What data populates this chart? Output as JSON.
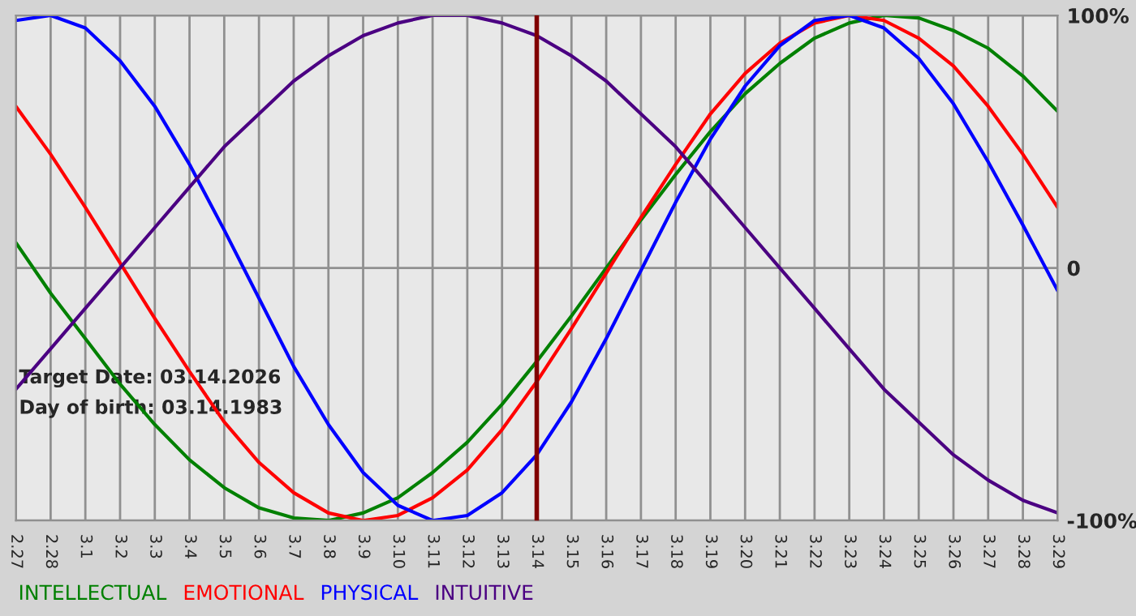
{
  "chart_data": {
    "type": "line",
    "categories": [
      "2.27",
      "2.28",
      "3.1",
      "3.2",
      "3.3",
      "3.4",
      "3.5",
      "3.6",
      "3.7",
      "3.8",
      "3.9",
      "3.10",
      "3.11",
      "3.12",
      "3.13",
      "3.14",
      "3.15",
      "3.16",
      "3.17",
      "3.18",
      "3.19",
      "3.20",
      "3.21",
      "3.22",
      "3.23",
      "3.24",
      "3.25",
      "3.26",
      "3.27",
      "3.28",
      "3.29"
    ],
    "series": [
      {
        "name": "INTELLECTUAL",
        "color": "#008000",
        "values": [
          10,
          -10,
          -28,
          -46,
          -62,
          -76,
          -87,
          -95,
          -99,
          -100,
          -97,
          -91,
          -81,
          -69,
          -54,
          -37,
          -19,
          0,
          19,
          37,
          54,
          69,
          81,
          91,
          97,
          100,
          99,
          94,
          87,
          76,
          62
        ]
      },
      {
        "name": "EMOTIONAL",
        "color": "#ff0000",
        "values": [
          64,
          45,
          24,
          2,
          -20,
          -41,
          -61,
          -77,
          -89,
          -97,
          -100,
          -98,
          -91,
          -80,
          -64,
          -45,
          -24,
          -2,
          20,
          41,
          61,
          77,
          89,
          97,
          100,
          98,
          91,
          80,
          64,
          45,
          24
        ]
      },
      {
        "name": "PHYSICAL",
        "color": "#0000ff",
        "values": [
          98,
          100,
          95,
          82,
          64,
          41,
          15,
          -12,
          -39,
          -62,
          -81,
          -94,
          -100,
          -98,
          -89,
          -74,
          -53,
          -28,
          -1,
          26,
          51,
          72,
          88,
          98,
          100,
          95,
          83,
          65,
          42,
          17,
          -9
        ]
      },
      {
        "name": "INTUITIVE",
        "color": "#4b0082",
        "values": [
          -48,
          -32,
          -16,
          0,
          16,
          32,
          48,
          61,
          74,
          84,
          92,
          97,
          100,
          100,
          97,
          92,
          84,
          74,
          61,
          48,
          32,
          16,
          0,
          -16,
          -32,
          -48,
          -61,
          -74,
          -84,
          -92,
          -97
        ]
      }
    ],
    "ylim": [
      -100,
      100
    ],
    "yticks": [
      {
        "value": -100,
        "label": "-100%"
      },
      0,
      {
        "value": 100,
        "label": "100%"
      }
    ],
    "ref_lines": [
      {
        "axis": "x",
        "value": "3.14",
        "color": "#800000"
      }
    ],
    "annotations": [
      "Target Date: 03.14.2026",
      "Day of birth: 03.14.1983"
    ],
    "grid": true,
    "legend": "bottom"
  }
}
